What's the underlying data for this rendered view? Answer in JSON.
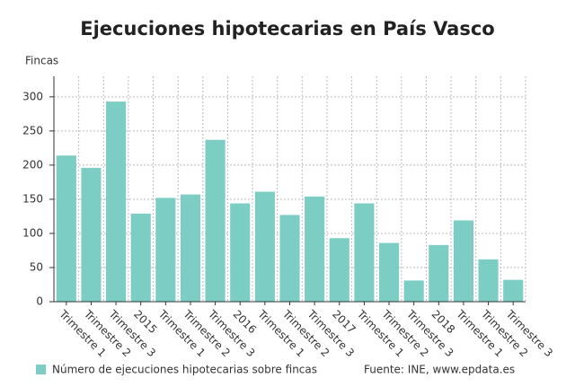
{
  "chart_data": {
    "type": "bar",
    "title": "Ejecuciones hipotecarias en País Vasco",
    "y_label": "Fincas",
    "categories": [
      "Trimestre 1",
      "Trimestre 2",
      "Trimestre 3",
      "2015",
      "Trimestre 1",
      "Trimestre 2",
      "Trimestre 3",
      "2016",
      "Trimestre 1",
      "Trimestre 2",
      "Trimestre 3",
      "2017",
      "Trimestre 1",
      "Trimestre 2",
      "Trimestre 3",
      "2018",
      "Trimestre 1",
      "Trimestre 2",
      "Trimestre 3"
    ],
    "series": [
      {
        "name": "Número de ejecuciones hipotecarias sobre fincas",
        "color": "#7ccdc4",
        "values": [
          214,
          196,
          293,
          129,
          152,
          157,
          237,
          144,
          161,
          127,
          154,
          93,
          144,
          86,
          31,
          83,
          119,
          62,
          32
        ]
      }
    ],
    "ylim": [
      0,
      330
    ],
    "yticks": [
      0,
      50,
      100,
      150,
      200,
      250,
      300
    ],
    "grid": true,
    "source": "Fuente: INE, www.epdata.es"
  }
}
